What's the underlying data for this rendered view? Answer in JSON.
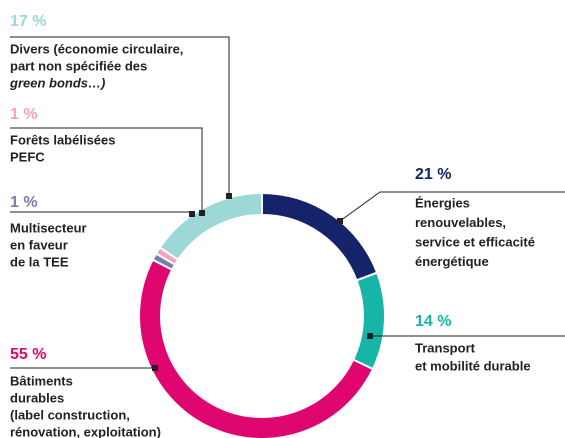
{
  "chart_data": {
    "type": "donut",
    "categories": [
      [
        "Énergies",
        "renouvelables,",
        "service et efficacité",
        "énergétique"
      ],
      [
        "Transport",
        "et mobilité durable"
      ],
      [
        "Bâtiments",
        "durables",
        "(label construction,",
        "rénovation, exploitation)"
      ],
      [
        "Multisecteur",
        "en faveur",
        "de la TEE"
      ],
      [
        "Forêts labélisées",
        "PEFC"
      ],
      [
        "Divers (économie circulaire,",
        "part non spécifiée des",
        "green bonds…)"
      ]
    ],
    "values": [
      21,
      14,
      55,
      1,
      1,
      17
    ],
    "value_labels": [
      "21 %",
      "14 %",
      "55 %",
      "1 %",
      "1 %",
      "17 %"
    ],
    "colors": [
      "#15236b",
      "#17b5a7",
      "#e0066f",
      "#7a7ea6",
      "#f3a2c1",
      "#9cd8d5"
    ]
  }
}
